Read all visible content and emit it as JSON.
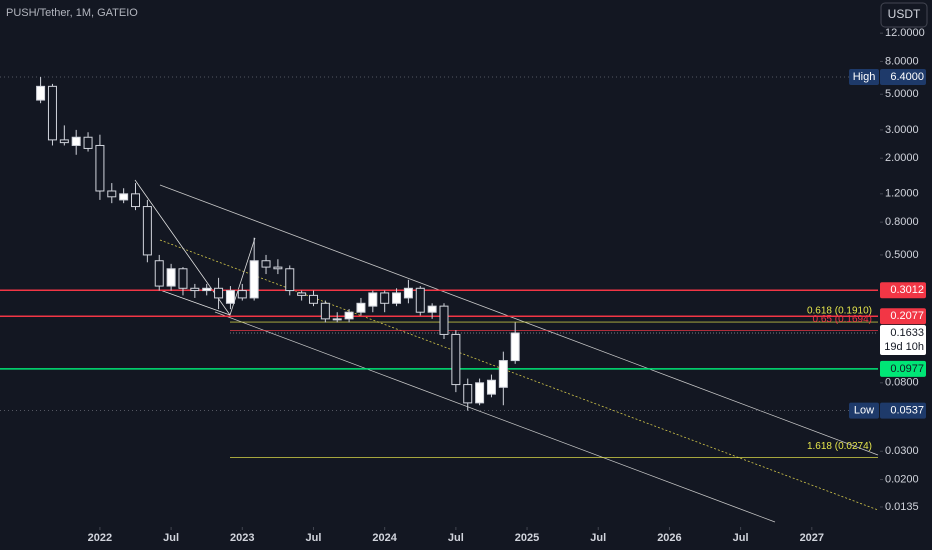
{
  "chart_data": {
    "type": "candlestick",
    "title": "PUSH/Tether, 1M, GATEIO",
    "currency_button": "USDT",
    "log_scale": true,
    "x": [
      "2021-08",
      "2021-09",
      "2021-10",
      "2021-11",
      "2021-12",
      "2022-01",
      "2022-02",
      "2022-03",
      "2022-04",
      "2022-05",
      "2022-06",
      "2022-07",
      "2022-08",
      "2022-09",
      "2022-10",
      "2022-11",
      "2022-12",
      "2023-01",
      "2023-02",
      "2023-03",
      "2023-04",
      "2023-05",
      "2023-06",
      "2023-07",
      "2023-08",
      "2023-09",
      "2023-10",
      "2023-11",
      "2023-12",
      "2024-01",
      "2024-02",
      "2024-03",
      "2024-04",
      "2024-05",
      "2024-06",
      "2024-07",
      "2024-08",
      "2024-09",
      "2024-10",
      "2024-11",
      "2024-12"
    ],
    "open": [
      4.6,
      5.6,
      2.6,
      2.4,
      2.7,
      2.4,
      1.25,
      1.1,
      1.2,
      1.0,
      0.46,
      0.32,
      0.41,
      0.31,
      0.3,
      0.31,
      0.25,
      0.3,
      0.27,
      0.46,
      0.42,
      0.41,
      0.29,
      0.28,
      0.25,
      0.2,
      0.2,
      0.22,
      0.24,
      0.29,
      0.25,
      0.27,
      0.31,
      0.22,
      0.24,
      0.16,
      0.078,
      0.06,
      0.068,
      0.075,
      0.11
    ],
    "high": [
      6.4,
      5.8,
      3.2,
      3.0,
      2.9,
      2.8,
      1.4,
      1.3,
      1.4,
      1.1,
      0.5,
      0.44,
      0.42,
      0.33,
      0.33,
      0.36,
      0.32,
      0.33,
      0.64,
      0.5,
      0.47,
      0.43,
      0.3,
      0.3,
      0.26,
      0.22,
      0.23,
      0.27,
      0.3,
      0.3,
      0.31,
      0.35,
      0.32,
      0.25,
      0.25,
      0.17,
      0.085,
      0.085,
      0.09,
      0.125,
      0.19
    ],
    "low": [
      4.4,
      2.4,
      2.4,
      2.1,
      2.2,
      1.1,
      1.05,
      1.05,
      0.95,
      0.45,
      0.3,
      0.3,
      0.28,
      0.27,
      0.28,
      0.23,
      0.23,
      0.26,
      0.26,
      0.38,
      0.38,
      0.28,
      0.26,
      0.24,
      0.19,
      0.19,
      0.19,
      0.21,
      0.22,
      0.22,
      0.24,
      0.25,
      0.21,
      0.2,
      0.15,
      0.07,
      0.0537,
      0.058,
      0.065,
      0.058,
      0.105
    ],
    "close": [
      5.6,
      2.6,
      2.5,
      2.7,
      2.3,
      1.25,
      1.15,
      1.2,
      1.0,
      0.5,
      0.32,
      0.41,
      0.31,
      0.3,
      0.31,
      0.27,
      0.3,
      0.27,
      0.46,
      0.42,
      0.41,
      0.3,
      0.28,
      0.25,
      0.2,
      0.2,
      0.22,
      0.25,
      0.29,
      0.25,
      0.29,
      0.31,
      0.22,
      0.24,
      0.16,
      0.078,
      0.06,
      0.08,
      0.083,
      0.11,
      0.1633
    ],
    "up_color": "#ffffff",
    "down_color": "#131722",
    "countdown": "19d 10h",
    "xlim": [
      "2021-05",
      "2027-07"
    ],
    "xticks": [
      {
        "value": "2022-01",
        "label": "2022"
      },
      {
        "value": "2022-07",
        "label": "Jul"
      },
      {
        "value": "2023-01",
        "label": "2023"
      },
      {
        "value": "2023-07",
        "label": "Jul"
      },
      {
        "value": "2024-01",
        "label": "2024"
      },
      {
        "value": "2024-07",
        "label": "Jul"
      },
      {
        "value": "2025-01",
        "label": "2025"
      },
      {
        "value": "2025-07",
        "label": "Jul"
      },
      {
        "value": "2026-01",
        "label": "2026"
      },
      {
        "value": "2026-07",
        "label": "Jul"
      },
      {
        "value": "2027-01",
        "label": "2027"
      }
    ],
    "ylim": [
      0.0112,
      19.3
    ],
    "yticks": [
      {
        "value": 12,
        "label": "12.0000"
      },
      {
        "value": 8,
        "label": "8.0000"
      },
      {
        "value": 5,
        "label": "5.0000"
      },
      {
        "value": 3,
        "label": "3.0000"
      },
      {
        "value": 2,
        "label": "2.0000"
      },
      {
        "value": 1.2,
        "label": "1.2000"
      },
      {
        "value": 0.8,
        "label": "0.8000"
      },
      {
        "value": 0.5,
        "label": "0.5000"
      },
      {
        "value": 0.08,
        "label": "0.0800"
      },
      {
        "value": 0.03,
        "label": "0.0300"
      },
      {
        "value": 0.02,
        "label": "0.0200"
      },
      {
        "value": 0.0135,
        "label": "0.0135"
      }
    ],
    "levels": [
      {
        "value": 0.3012,
        "color": "#f23645"
      },
      {
        "value": 0.2077,
        "color": "#f23645"
      },
      {
        "value": 0.0977,
        "color": "#00e676"
      }
    ],
    "high_marker": {
      "name": "High",
      "value": 6.4,
      "label": "6.4000"
    },
    "low_marker": {
      "name": "Low",
      "value": 0.0537
    },
    "fibs": [
      {
        "label": "0.618 (0.1910)",
        "value": 0.191,
        "color": "#e5e54b"
      },
      {
        "label": "0.65 (0.1694)",
        "value": 0.1694,
        "color": "#f23645"
      },
      {
        "label": "1.618 (0.0274)",
        "value": 0.0274,
        "color": "#e5e54b"
      }
    ]
  }
}
